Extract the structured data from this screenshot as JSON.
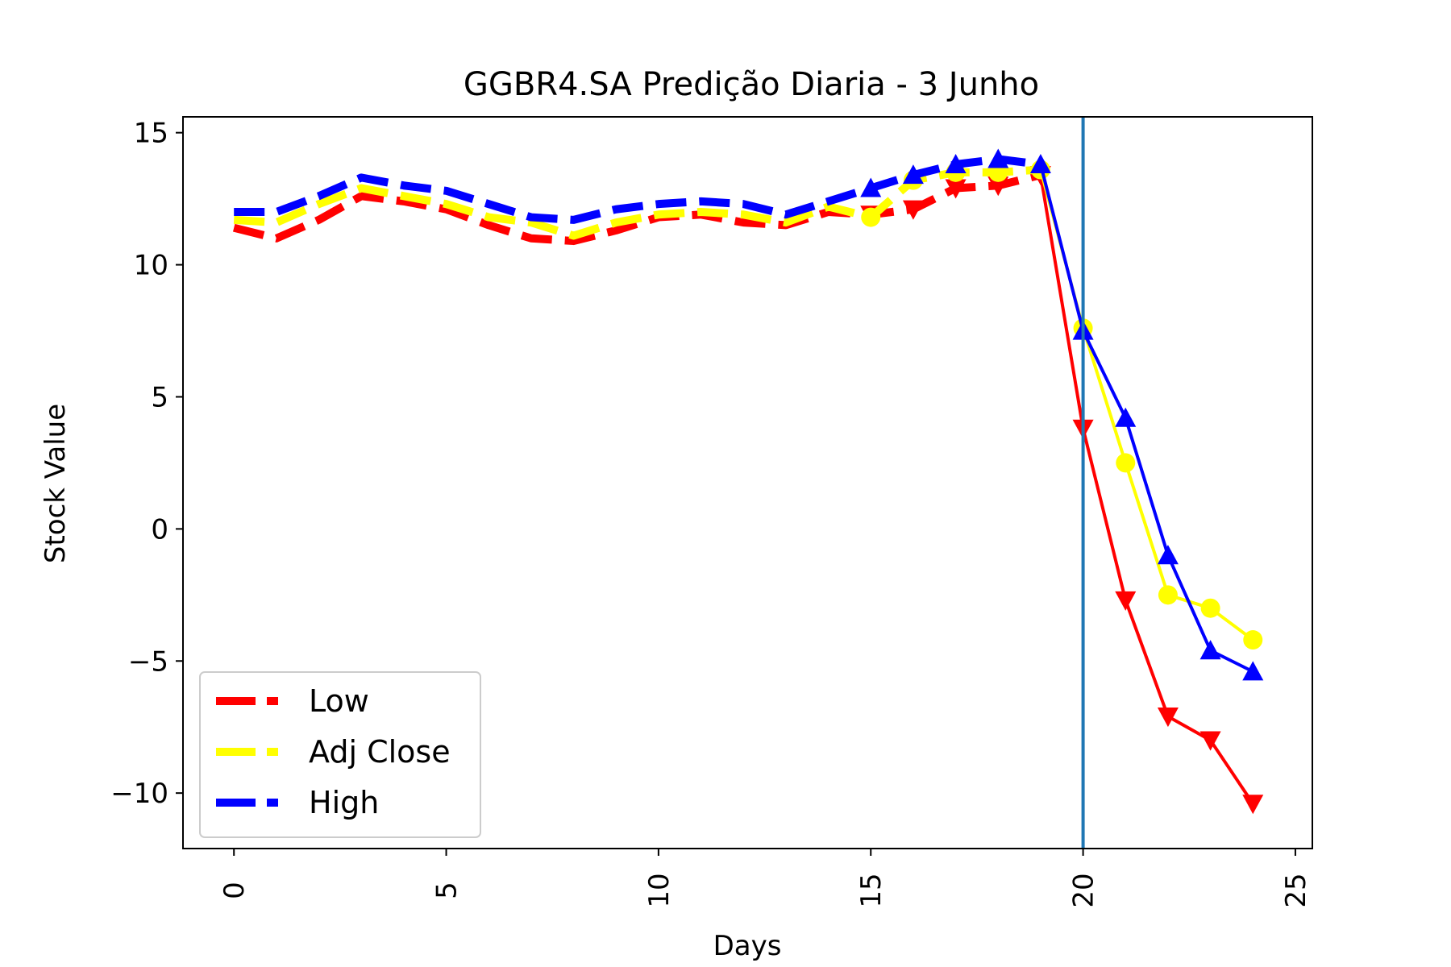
{
  "chart_data": {
    "type": "line",
    "title": "GGBR4.SA Predição Diaria - 3 Junho",
    "xlabel": "Days",
    "ylabel": "Stock Value",
    "xlim": [
      -1.2,
      25.4
    ],
    "ylim": [
      -12.1,
      15.6
    ],
    "x_ticks": [
      0,
      5,
      10,
      15,
      20,
      25
    ],
    "y_ticks": [
      15,
      10,
      5,
      0,
      -5,
      -10
    ],
    "y_tick_labels": [
      "15",
      "10",
      "5",
      "0",
      "−5",
      "−10"
    ],
    "vertical_line": {
      "x": 20,
      "color": "#1f77b4"
    },
    "legend": {
      "position": "lower-left",
      "entries": [
        "Low",
        "Adj Close",
        "High"
      ]
    },
    "historical_x": [
      0,
      1,
      2,
      3,
      4,
      5,
      6,
      7,
      8,
      9,
      10,
      11,
      12,
      13,
      14,
      15,
      16,
      17,
      18,
      19
    ],
    "forecast_x": [
      19,
      20,
      21,
      22,
      23,
      24
    ],
    "series": [
      {
        "name": "Low",
        "color": "#ff0000",
        "marker": "triangle-down",
        "historical": [
          11.4,
          11.0,
          11.7,
          12.6,
          12.4,
          12.1,
          11.5,
          11.0,
          10.9,
          11.3,
          11.8,
          11.9,
          11.6,
          11.5,
          12.0,
          11.9,
          12.1,
          12.9,
          13.0,
          13.4
        ],
        "forecast": [
          13.4,
          3.8,
          -2.7,
          -7.1,
          -8.0,
          -10.4
        ]
      },
      {
        "name": "Adj Close",
        "color": "#ffff00",
        "marker": "circle",
        "historical": [
          11.7,
          11.6,
          12.3,
          12.9,
          12.6,
          12.3,
          11.8,
          11.6,
          11.1,
          11.6,
          11.9,
          12.0,
          11.9,
          11.6,
          12.2,
          11.8,
          13.2,
          13.5,
          13.5,
          13.6
        ],
        "forecast": [
          13.6,
          7.6,
          2.5,
          -2.5,
          -3.0,
          -4.2
        ]
      },
      {
        "name": "High",
        "color": "#0000ff",
        "marker": "triangle-up",
        "historical": [
          12.0,
          12.0,
          12.6,
          13.3,
          13.0,
          12.8,
          12.3,
          11.8,
          11.7,
          12.1,
          12.3,
          12.4,
          12.3,
          11.9,
          12.4,
          12.9,
          13.4,
          13.8,
          14.0,
          13.8
        ],
        "forecast": [
          13.8,
          7.5,
          4.2,
          -1.0,
          -4.6,
          -5.4
        ]
      }
    ]
  }
}
